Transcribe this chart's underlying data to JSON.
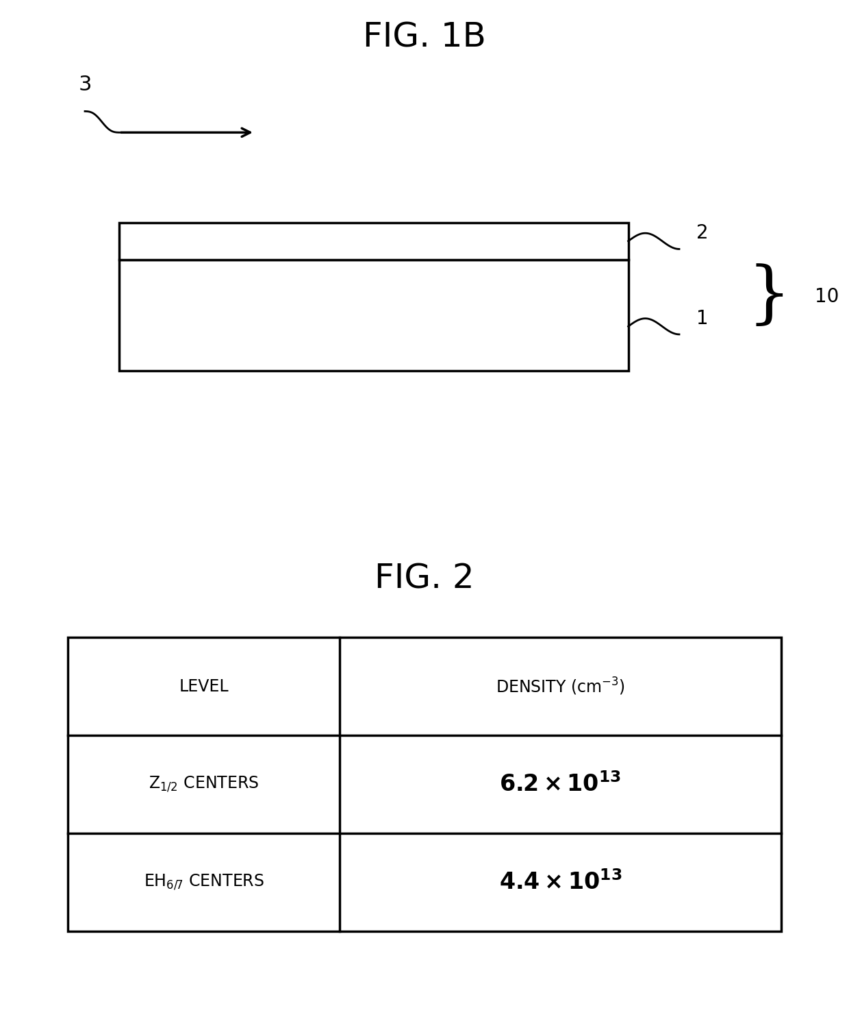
{
  "fig1b_title": "FIG. 1B",
  "fig2_title": "FIG. 2",
  "background_color": "#ffffff",
  "title_fontsize": 36,
  "table_header_fontsize": 17,
  "table_data_fontsize": 24,
  "table_col1_header": "LEVEL",
  "table_col2_header": "DENSITY (cm",
  "arrow_label": "3",
  "layer_label_2": "2",
  "layer_label_1": "1",
  "brace_label": "10"
}
